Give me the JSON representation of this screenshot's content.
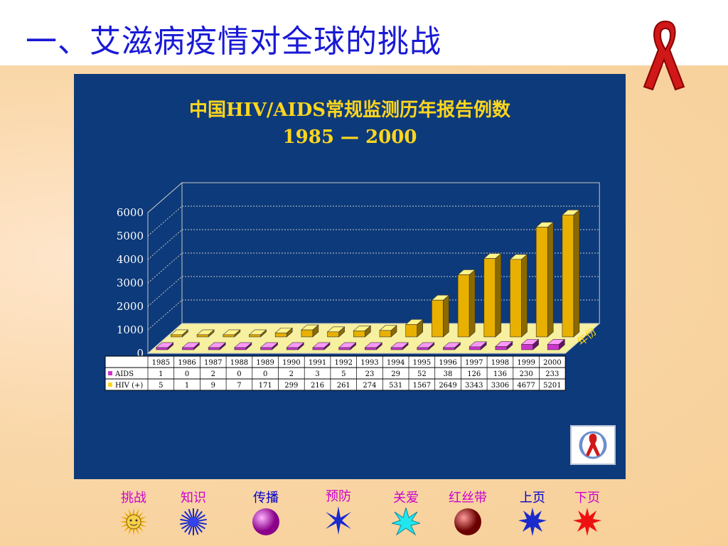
{
  "slide": {
    "title": "一、艾滋病疫情对全球的挑战"
  },
  "chart_data": {
    "type": "bar",
    "title": "中国HIV/AIDS常规监测历年报告例数",
    "subtitle": "1985 — 2000",
    "axis_label_3d": "年份",
    "categories": [
      "1985",
      "1986",
      "1987",
      "1988",
      "1989",
      "1990",
      "1991",
      "1992",
      "1993",
      "1994",
      "1995",
      "1996",
      "1997",
      "1998",
      "1999",
      "2000"
    ],
    "ylim": [
      0,
      6000
    ],
    "yticks": [
      "6000",
      "5000",
      "4000",
      "3000",
      "2000",
      "1000",
      "0"
    ],
    "series": [
      {
        "name": "AIDS",
        "color": "#cc33cc",
        "values": [
          1,
          0,
          2,
          0,
          0,
          2,
          3,
          5,
          23,
          29,
          52,
          38,
          126,
          136,
          230,
          233
        ]
      },
      {
        "name": "HIV (+)",
        "color": "#ffd61e",
        "values": [
          5,
          1,
          9,
          7,
          171,
          299,
          216,
          261,
          274,
          531,
          1567,
          2649,
          3343,
          3306,
          4677,
          5201
        ]
      }
    ],
    "table": {
      "rows": [
        {
          "label": "AIDS",
          "cells": [
            "1",
            "0",
            "2",
            "0",
            "0",
            "2",
            "3",
            "5",
            "23",
            "29",
            "52",
            "38",
            "126",
            "136",
            "230",
            "233"
          ]
        },
        {
          "label": "HIV (+)",
          "cells": [
            "5",
            "1",
            "9",
            "7",
            "171",
            "299",
            "216",
            "261",
            "274",
            "531",
            "1567",
            "2649",
            "3343",
            "3306",
            "4677",
            "5201"
          ]
        }
      ]
    }
  },
  "nav": {
    "items": [
      {
        "label": "挑战",
        "color": "#cc00cc",
        "icon": "sun-icon"
      },
      {
        "label": "知识",
        "color": "#cc00cc",
        "icon": "blue-star-burst-icon"
      },
      {
        "label": "传播",
        "color": "#0000cc",
        "icon": "purple-sphere-icon"
      },
      {
        "label": "预防",
        "color": "#cc00cc",
        "icon": "blue-star-icon"
      },
      {
        "label": "关爱",
        "color": "#cc00cc",
        "icon": "cyan-star-icon"
      },
      {
        "label": "红丝带",
        "color": "#cc00cc",
        "icon": "red-sphere-icon"
      },
      {
        "label": "上页",
        "color": "#0000cc",
        "icon": "blue-burst-icon"
      },
      {
        "label": "下页",
        "color": "#cc00cc",
        "icon": "red-burst-icon"
      }
    ]
  }
}
